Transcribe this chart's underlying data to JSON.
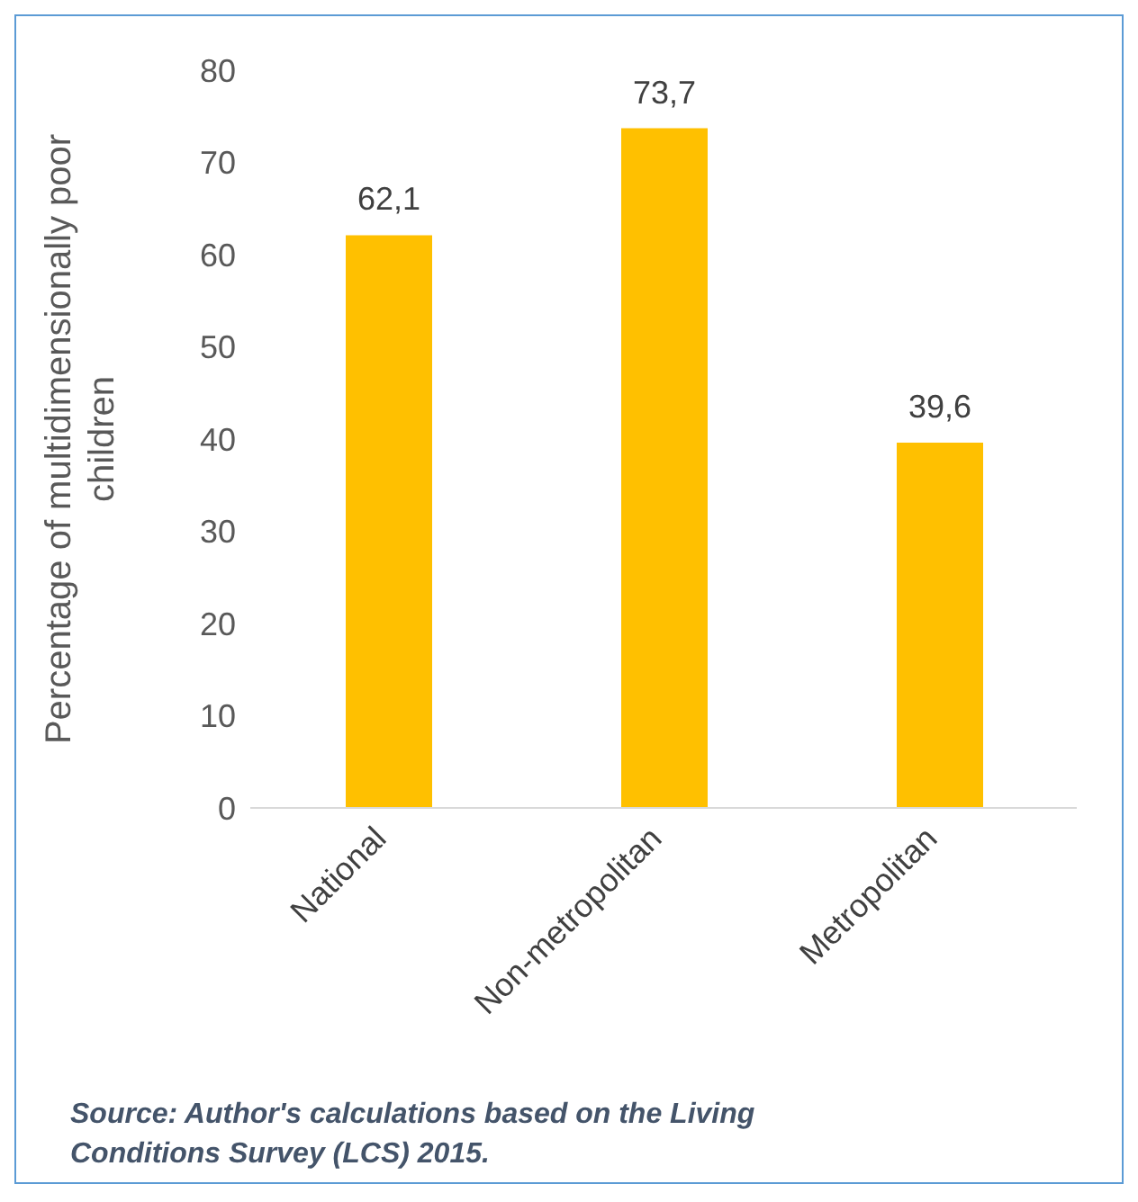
{
  "chart_data": {
    "type": "bar",
    "ylabel": "Percentage of multidimensionally poor children",
    "categories": [
      "National",
      "Non-metropolitan",
      "Metropolitan"
    ],
    "values": [
      62.1,
      73.7,
      39.6
    ],
    "value_labels": [
      "62,1",
      "73,7",
      "39,6"
    ],
    "color": "#ffc000",
    "ylim": [
      0,
      80
    ],
    "yticks": [
      0,
      10,
      20,
      30,
      40,
      50,
      60,
      70,
      80
    ],
    "annotations": [
      "Source: Author's calculations based on the Living Conditions Survey (LCS) 2015."
    ]
  }
}
